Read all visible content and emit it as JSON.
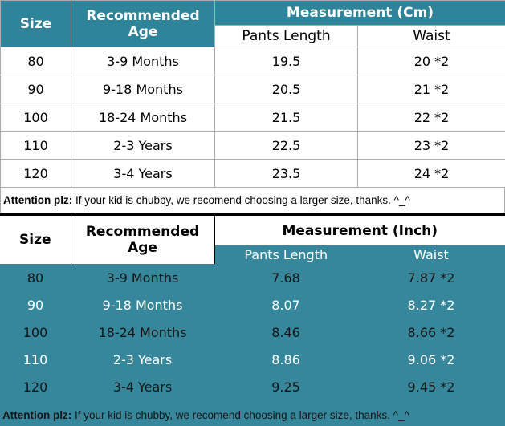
{
  "colors": {
    "teal-header": "#2E8498",
    "teal-body": "#36879C",
    "grid-line": "#ABABAB",
    "divider-black": "#000000",
    "text-dark": "#151515",
    "text-light": "#FFFFFF"
  },
  "chart_data": [
    {
      "type": "table",
      "unit": "Cm",
      "header": {
        "size": "Size",
        "age": "Recommended Age",
        "measurement": "Measurement (Cm)",
        "pants_length": "Pants Length",
        "waist": "Waist"
      },
      "rows": [
        {
          "size": "80",
          "age": "3-9 Months",
          "pants_length": "19.5",
          "waist": "20 *2"
        },
        {
          "size": "90",
          "age": "9-18 Months",
          "pants_length": "20.5",
          "waist": "21 *2"
        },
        {
          "size": "100",
          "age": "18-24 Months",
          "pants_length": "21.5",
          "waist": "22 *2"
        },
        {
          "size": "110",
          "age": "2-3 Years",
          "pants_length": "22.5",
          "waist": "23 *2"
        },
        {
          "size": "120",
          "age": "3-4 Years",
          "pants_length": "23.5",
          "waist": "24 *2"
        }
      ],
      "note_label": "Attention plz:",
      "note_text": " If your kid is chubby, we recomend choosing a larger size, thanks. ^_^"
    },
    {
      "type": "table",
      "unit": "Inch",
      "header": {
        "size": "Size",
        "age": "Recommended Age",
        "measurement": "Measurement (Inch)",
        "pants_length": "Pants Length",
        "waist": "Waist"
      },
      "rows": [
        {
          "size": "80",
          "age": "3-9 Months",
          "pants_length": "7.68",
          "waist": "7.87 *2"
        },
        {
          "size": "90",
          "age": "9-18 Months",
          "pants_length": "8.07",
          "waist": "8.27 *2"
        },
        {
          "size": "100",
          "age": "18-24 Months",
          "pants_length": "8.46",
          "waist": "8.66 *2"
        },
        {
          "size": "110",
          "age": "2-3 Years",
          "pants_length": "8.86",
          "waist": "9.06 *2"
        },
        {
          "size": "120",
          "age": "3-4 Years",
          "pants_length": "9.25",
          "waist": "9.45 *2"
        }
      ],
      "note_label": "Attention plz:",
      "note_text": " If your kid is chubby, we recomend choosing a larger size, thanks. ^_^"
    }
  ]
}
